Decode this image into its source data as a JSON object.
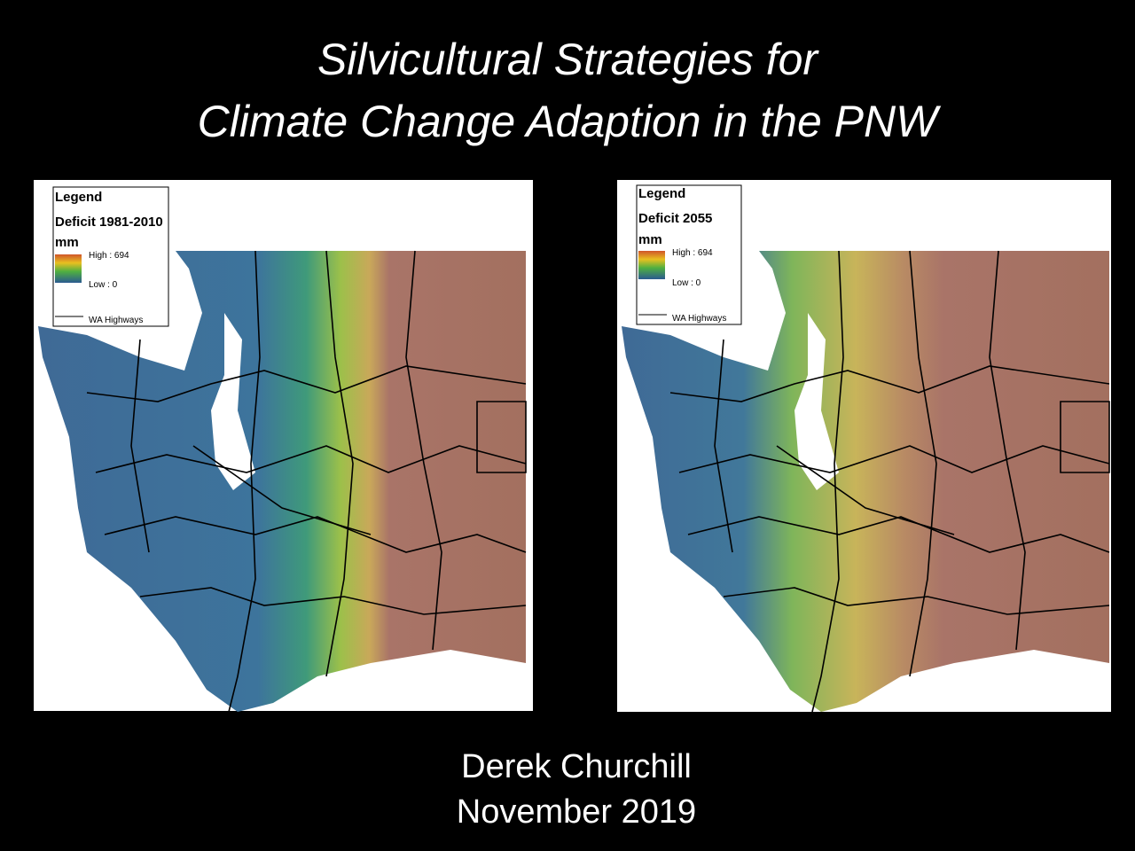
{
  "title": [
    "Silvicultural Strategies for",
    "Climate Change Adaption in the PNW"
  ],
  "maps": [
    {
      "legend": {
        "heading": "Legend",
        "title": "Deficit 1981-2010",
        "unit": "mm",
        "high": "High : 694",
        "low": "Low : 0",
        "line": "WA Highways"
      }
    },
    {
      "legend": {
        "heading": "Legend",
        "title": "Deficit 2055",
        "unit": "mm",
        "high": "High : 694",
        "low": "Low : 0",
        "line": "WA Highways"
      }
    }
  ],
  "author": "Derek Churchill",
  "date": "November 2019"
}
